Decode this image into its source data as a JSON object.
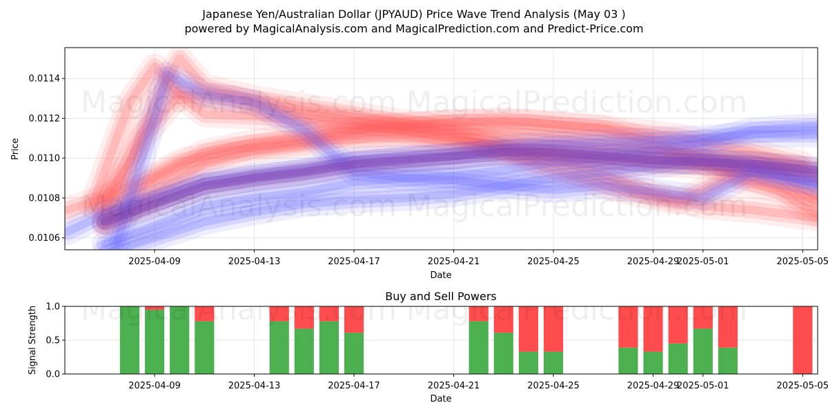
{
  "title_line1": "Japanese Yen/Australian Dollar (JPYAUD) Price Wave Trend Analysis (May 03 )",
  "title_line2": "powered by MagicalAnalysis.com and MagicalPrediction.com and Predict-Price.com",
  "watermarks": [
    "MagicalAnalysis.com",
    "MagicalPrediction.com"
  ],
  "colors": {
    "buy": "#4caf50",
    "sell": "#ff4d4d",
    "red_wave": "#ff5a5a",
    "blue_wave": "#5a5aff",
    "purple": "#8040b0"
  },
  "chart_data": [
    {
      "type": "area",
      "title": "",
      "xlabel": "Date",
      "ylabel": "Price",
      "x_ticks": [
        "2025-04-09",
        "2025-04-13",
        "2025-04-17",
        "2025-04-21",
        "2025-04-25",
        "2025-04-29",
        "2025-05-01",
        "2025-05-05"
      ],
      "x_tick_days": [
        2,
        6,
        10,
        14,
        18,
        22,
        24,
        28
      ],
      "x_range_days": [
        -1.6,
        28.6
      ],
      "x_origin": "2025-04-07",
      "y_ticks": [
        "0.0106",
        "0.0108",
        "0.0110",
        "0.0112",
        "0.0114"
      ],
      "y_tick_values": [
        0.0106,
        0.0108,
        0.011,
        0.0112,
        0.0114
      ],
      "ylim": [
        0.01054,
        0.011555
      ],
      "grid": true,
      "series": [
        {
          "name": "red-wave-1",
          "color": "red",
          "x": [
            -1.5,
            0,
            1,
            2,
            3,
            5,
            8,
            11,
            14,
            17,
            20,
            23,
            26,
            28
          ],
          "values": [
            0.01074,
            0.0108,
            0.01086,
            0.01091,
            0.01098,
            0.01104,
            0.01108,
            0.01116,
            0.01118,
            0.01118,
            0.01115,
            0.01111,
            0.01103,
            0.01097
          ]
        },
        {
          "name": "red-wave-2",
          "color": "red",
          "x": [
            -0.5,
            1,
            2,
            3,
            4,
            6,
            9,
            12,
            15,
            18,
            21,
            24,
            27,
            28.5
          ],
          "values": [
            0.01076,
            0.01128,
            0.01146,
            0.01132,
            0.01122,
            0.01121,
            0.01117,
            0.01114,
            0.01108,
            0.01102,
            0.01098,
            0.01096,
            0.01092,
            0.01081
          ]
        },
        {
          "name": "red-wave-3",
          "color": "red",
          "x": [
            0,
            1,
            2,
            3,
            4,
            6,
            9,
            12,
            15,
            18,
            21,
            24,
            27,
            28.5
          ],
          "values": [
            0.0108,
            0.01098,
            0.01128,
            0.0115,
            0.01136,
            0.0113,
            0.01124,
            0.01118,
            0.01113,
            0.0111,
            0.01106,
            0.01101,
            0.01095,
            0.0109
          ]
        },
        {
          "name": "red-wave-4",
          "color": "red",
          "x": [
            0,
            2,
            4,
            6,
            8,
            10,
            12,
            14,
            16,
            18,
            20,
            22,
            24,
            26,
            28.5
          ],
          "values": [
            0.01072,
            0.0109,
            0.01103,
            0.01108,
            0.01111,
            0.01114,
            0.01116,
            0.01118,
            0.01119,
            0.01117,
            0.01115,
            0.01108,
            0.01098,
            0.0109,
            0.01079
          ]
        },
        {
          "name": "red-wave-5",
          "color": "red",
          "x": [
            0,
            2,
            4,
            6,
            9,
            12,
            15,
            18,
            20,
            22,
            24,
            26,
            28.5
          ],
          "values": [
            0.01066,
            0.01082,
            0.01097,
            0.01104,
            0.01109,
            0.0111,
            0.01108,
            0.011,
            0.01092,
            0.01082,
            0.01076,
            0.01074,
            0.0107
          ]
        },
        {
          "name": "red-wave-6",
          "color": "red",
          "x": [
            0,
            1.5,
            3,
            5,
            8,
            11,
            14,
            17,
            19,
            21,
            23,
            25,
            27,
            28.5
          ],
          "values": [
            0.01075,
            0.0111,
            0.01132,
            0.0113,
            0.01122,
            0.01117,
            0.01112,
            0.01098,
            0.0109,
            0.01083,
            0.01078,
            0.0109,
            0.01084,
            0.01072
          ]
        },
        {
          "name": "blue-wave-1",
          "color": "blue",
          "x": [
            -1.5,
            0,
            2,
            4,
            6,
            8,
            10,
            12,
            14,
            16,
            18,
            20,
            22,
            24,
            26,
            28.5
          ],
          "values": [
            0.01063,
            0.01072,
            0.0108,
            0.01088,
            0.01091,
            0.01094,
            0.01099,
            0.011,
            0.01101,
            0.01105,
            0.01107,
            0.01108,
            0.01109,
            0.0111,
            0.01112,
            0.01112
          ]
        },
        {
          "name": "blue-wave-2",
          "color": "blue",
          "x": [
            0,
            2,
            4,
            6,
            8,
            10,
            12,
            14,
            16,
            18,
            20,
            22,
            24,
            26,
            28.5
          ],
          "values": [
            0.01057,
            0.01066,
            0.01076,
            0.0108,
            0.01083,
            0.01088,
            0.0109,
            0.01091,
            0.01094,
            0.01098,
            0.011,
            0.01104,
            0.01108,
            0.01114,
            0.01116
          ]
        },
        {
          "name": "blue-wave-3",
          "color": "blue",
          "x": [
            0,
            2,
            4,
            6,
            8,
            10,
            12,
            14,
            16,
            18,
            20,
            22,
            24,
            26,
            28.5
          ],
          "values": [
            0.01052,
            0.0106,
            0.01068,
            0.01073,
            0.01077,
            0.01079,
            0.0108,
            0.01082,
            0.01086,
            0.0109,
            0.01093,
            0.01096,
            0.011,
            0.01095,
            0.01087
          ]
        },
        {
          "name": "blue-wave-4",
          "color": "blue",
          "x": [
            0.5,
            1.5,
            2.5,
            4,
            6,
            8,
            10,
            12,
            14,
            16,
            18,
            20,
            22,
            24,
            26,
            28.5
          ],
          "values": [
            0.01058,
            0.011,
            0.01142,
            0.01132,
            0.01128,
            0.01114,
            0.01093,
            0.0109,
            0.01089,
            0.01086,
            0.01084,
            0.01086,
            0.01083,
            0.0108,
            0.01093,
            0.01088
          ]
        },
        {
          "name": "purple-wave",
          "color": "purple",
          "x": [
            0,
            2,
            4,
            6,
            8,
            10,
            12,
            14,
            16,
            18,
            20,
            22,
            24,
            26,
            28.5
          ],
          "values": [
            0.01068,
            0.01077,
            0.01086,
            0.0109,
            0.01093,
            0.01097,
            0.01099,
            0.01101,
            0.01103,
            0.01103,
            0.01101,
            0.01099,
            0.01098,
            0.01097,
            0.01094
          ]
        }
      ]
    },
    {
      "type": "bar",
      "title": "Buy and Sell Powers",
      "xlabel": "Date",
      "ylabel": "Signal Strength",
      "ylim": [
        0,
        1
      ],
      "y_ticks": [
        "0.0",
        "0.5",
        "1.0"
      ],
      "y_tick_values": [
        0,
        0.5,
        1
      ],
      "x_ticks": [
        "2025-04-09",
        "2025-04-13",
        "2025-04-17",
        "2025-04-21",
        "2025-04-25",
        "2025-04-29",
        "2025-05-01",
        "2025-05-05"
      ],
      "x_tick_days": [
        2,
        6,
        10,
        14,
        18,
        22,
        24,
        28
      ],
      "x_range_days": [
        -1.6,
        28.6
      ],
      "grid": true,
      "days": [
        1,
        2,
        3,
        4,
        7,
        8,
        9,
        10,
        15,
        16,
        17,
        18,
        21,
        22,
        23,
        24,
        25,
        28
      ],
      "series": [
        {
          "name": "Buy",
          "values": [
            1.0,
            0.95,
            1.0,
            0.78,
            0.78,
            0.67,
            0.78,
            0.61,
            0.78,
            0.61,
            0.33,
            0.33,
            0.39,
            0.33,
            0.45,
            0.67,
            0.39,
            0.0
          ]
        },
        {
          "name": "Sell",
          "values": [
            0.0,
            0.05,
            0.0,
            0.22,
            0.22,
            0.33,
            0.22,
            0.39,
            0.22,
            0.39,
            0.67,
            0.67,
            0.61,
            0.67,
            0.55,
            0.33,
            0.61,
            1.0
          ]
        }
      ]
    }
  ]
}
